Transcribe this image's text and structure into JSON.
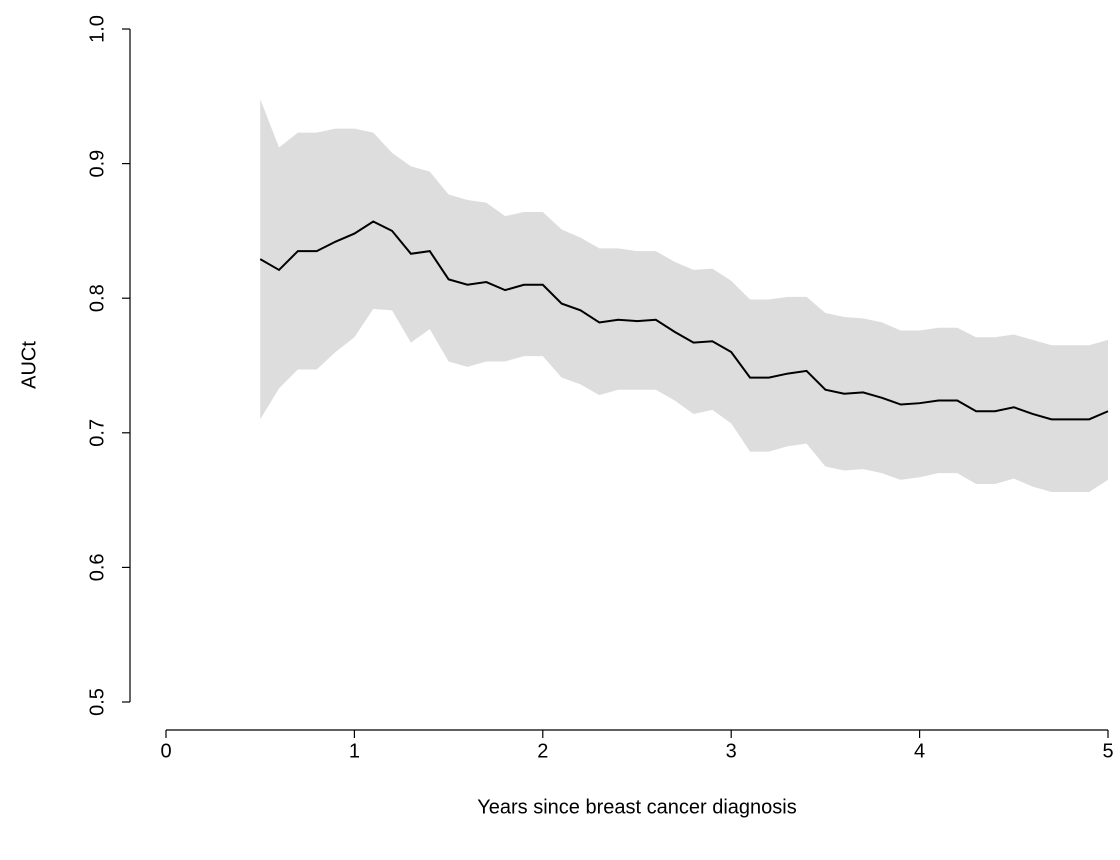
{
  "chart_data": {
    "type": "line",
    "xlabel": "Years since breast cancer diagnosis",
    "ylabel": "AUCt",
    "x": [
      0.5,
      0.6,
      0.7,
      0.8,
      0.9,
      1.0,
      1.1,
      1.2,
      1.3,
      1.4,
      1.5,
      1.6,
      1.7,
      1.8,
      1.9,
      2.0,
      2.1,
      2.2,
      2.3,
      2.4,
      2.5,
      2.6,
      2.7,
      2.8,
      2.9,
      3.0,
      3.1,
      3.2,
      3.3,
      3.4,
      3.5,
      3.6,
      3.7,
      3.8,
      3.9,
      4.0,
      4.1,
      4.2,
      4.3,
      4.4,
      4.5,
      4.6,
      4.7,
      4.8,
      4.9,
      5.0
    ],
    "values": [
      0.829,
      0.821,
      0.835,
      0.835,
      0.842,
      0.848,
      0.857,
      0.85,
      0.833,
      0.835,
      0.814,
      0.81,
      0.812,
      0.806,
      0.81,
      0.81,
      0.796,
      0.791,
      0.782,
      0.784,
      0.783,
      0.784,
      0.775,
      0.767,
      0.768,
      0.76,
      0.741,
      0.741,
      0.744,
      0.746,
      0.732,
      0.729,
      0.73,
      0.726,
      0.721,
      0.722,
      0.724,
      0.724,
      0.716,
      0.716,
      0.719,
      0.714,
      0.71,
      0.71,
      0.71,
      0.716
    ],
    "upper": [
      0.948,
      0.912,
      0.923,
      0.923,
      0.926,
      0.926,
      0.923,
      0.908,
      0.898,
      0.894,
      0.877,
      0.873,
      0.871,
      0.861,
      0.864,
      0.864,
      0.851,
      0.845,
      0.837,
      0.837,
      0.835,
      0.835,
      0.827,
      0.821,
      0.822,
      0.813,
      0.799,
      0.799,
      0.801,
      0.801,
      0.789,
      0.786,
      0.785,
      0.782,
      0.776,
      0.776,
      0.778,
      0.778,
      0.771,
      0.771,
      0.773,
      0.769,
      0.765,
      0.765,
      0.765,
      0.769
    ],
    "lower": [
      0.71,
      0.733,
      0.747,
      0.747,
      0.76,
      0.771,
      0.792,
      0.791,
      0.767,
      0.777,
      0.753,
      0.749,
      0.753,
      0.753,
      0.757,
      0.757,
      0.741,
      0.736,
      0.728,
      0.732,
      0.732,
      0.732,
      0.724,
      0.714,
      0.717,
      0.707,
      0.686,
      0.686,
      0.69,
      0.692,
      0.675,
      0.672,
      0.673,
      0.67,
      0.665,
      0.667,
      0.67,
      0.67,
      0.662,
      0.662,
      0.666,
      0.66,
      0.656,
      0.656,
      0.656,
      0.665
    ],
    "color": "#000000",
    "band_color": "#dddddd",
    "xlim": [
      0,
      5
    ],
    "xticks": [
      0,
      1,
      2,
      3,
      4,
      5
    ],
    "ylim": [
      0.5,
      1.0
    ],
    "yticks": [
      0.5,
      0.6,
      0.7,
      0.8,
      0.9,
      {
        "value": 1.0,
        "label": "1.0"
      }
    ]
  }
}
